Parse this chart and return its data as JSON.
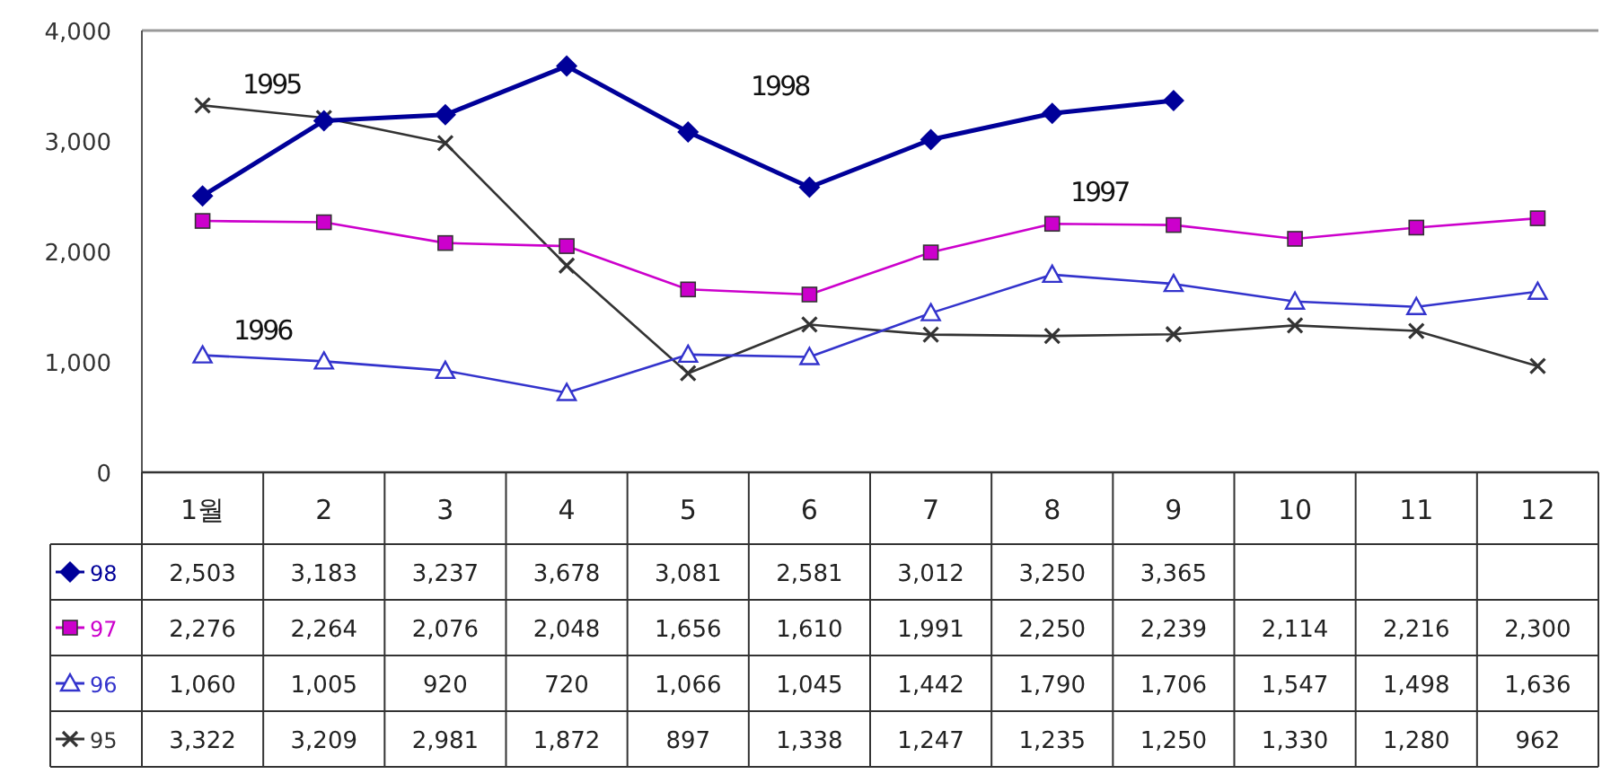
{
  "chart_data": {
    "type": "line",
    "categories": [
      "1월",
      "2",
      "3",
      "4",
      "5",
      "6",
      "7",
      "8",
      "9",
      "10",
      "11",
      "12"
    ],
    "series": [
      {
        "name": "98",
        "color": "#000099",
        "marker": "diamond",
        "values": [
          2503,
          3183,
          3237,
          3678,
          3081,
          2581,
          3012,
          3250,
          3365,
          null,
          null,
          null
        ],
        "value_labels": [
          "2,503",
          "3,183",
          "3,237",
          "3,678",
          "3,081",
          "2,581",
          "3,012",
          "3,250",
          "3,365",
          null,
          null,
          null
        ]
      },
      {
        "name": "97",
        "color": "#cc00cc",
        "marker": "square",
        "values": [
          2276,
          2264,
          2076,
          2048,
          1656,
          1610,
          1991,
          2250,
          2239,
          2114,
          2216,
          2300
        ],
        "value_labels": [
          "2,276",
          "2,264",
          "2,076",
          "2,048",
          "1,656",
          "1,610",
          "1,991",
          "2,250",
          "2,239",
          "2,114",
          "2,216",
          "2,300"
        ]
      },
      {
        "name": "96",
        "color": "#3333cc",
        "marker": "triangle",
        "values": [
          1060,
          1005,
          920,
          720,
          1066,
          1045,
          1442,
          1790,
          1706,
          1547,
          1498,
          1636
        ],
        "value_labels": [
          "1,060",
          "1,005",
          "920",
          "720",
          "1,066",
          "1,045",
          "1,442",
          "1,790",
          "1,706",
          "1,547",
          "1,498",
          "1,636"
        ]
      },
      {
        "name": "95",
        "color": "#333333",
        "marker": "cross",
        "values": [
          3322,
          3209,
          2981,
          1872,
          897,
          1338,
          1247,
          1235,
          1250,
          1330,
          1280,
          962
        ],
        "value_labels": [
          "3,322",
          "3,209",
          "2,981",
          "1,872",
          "897",
          "1,338",
          "1,247",
          "1,235",
          "1,250",
          "1,330",
          "1,280",
          "962"
        ]
      }
    ],
    "ylim": [
      0,
      4000
    ],
    "yticks": [
      {
        "value": 0,
        "label": "0"
      },
      {
        "value": 1000,
        "label": "1,000"
      },
      {
        "value": 2000,
        "label": "2,000"
      },
      {
        "value": 3000,
        "label": "3,000"
      },
      {
        "value": 4000,
        "label": "4,000"
      }
    ],
    "grid": false,
    "legend": "bottom",
    "annotations": [
      "1998",
      "1995",
      "1997",
      "1996"
    ]
  }
}
